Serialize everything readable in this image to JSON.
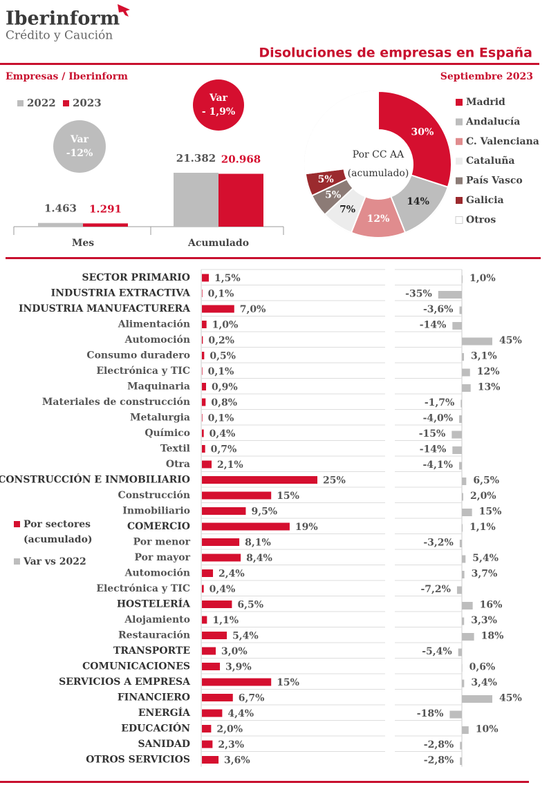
{
  "header": {
    "brand": "Iberinform",
    "tagline": "Crédito y Caución",
    "title": "Disoluciones de empresas en España",
    "source": "Empresas / Iberinform",
    "date": "Septiembre 2023"
  },
  "chart_data": [
    {
      "type": "bar",
      "categories": [
        "Mes",
        "Acumulado"
      ],
      "series": [
        {
          "name": "2022",
          "color": "#bdbdbd",
          "values": [
            1463,
            21382
          ],
          "value_labels": [
            "1.463",
            "21.382"
          ]
        },
        {
          "name": "2023",
          "color": "#d50f2f",
          "values": [
            1291,
            20968
          ],
          "value_labels": [
            "1.291",
            "20.968"
          ]
        }
      ],
      "annotations": [
        {
          "title": "Var",
          "text": "-12%",
          "color": "#bdbdbd"
        },
        {
          "title": "Var",
          "text": "- 1,9%",
          "color": "#d50f2f"
        }
      ]
    },
    {
      "type": "pie",
      "center_label": "Por CC AA (acumulado)",
      "categories": [
        "Madrid",
        "Andalucía",
        "C. Valenciana",
        "Cataluña",
        "País Vasco",
        "Galicia",
        "Otros"
      ],
      "values": [
        30,
        14,
        12,
        7,
        5,
        5,
        27
      ],
      "value_labels": [
        "30%",
        "14%",
        "12%",
        "7%",
        "5%",
        "5%",
        null
      ],
      "colors": [
        "#d50f2f",
        "#bdbdbd",
        "#e08c8e",
        "#ececec",
        "#8c7b76",
        "#9b2a2e",
        "#ffffff"
      ]
    },
    {
      "type": "hbar",
      "categories": [
        "SECTOR PRIMARIO",
        "INDUSTRIA EXTRACTIVA",
        "INDUSTRIA MANUFACTURERA",
        "Alimentación",
        "Automoción",
        "Consumo duradero",
        "Electrónica y TIC",
        "Maquinaria",
        "Materiales de construcción",
        "Metalurgia",
        "Químico",
        "Textil",
        "Otra",
        "CONSTRUCCIÓN E INMOBILIARIO",
        "Construcción",
        "Inmobiliario",
        "COMERCIO",
        "Por menor",
        "Por mayor",
        "Automoción",
        "Electrónica y TIC",
        "HOSTELERÍA",
        "Alojamiento",
        "Restauración",
        "TRANSPORTE",
        "COMUNICACIONES",
        "SERVICIOS A EMPRESA",
        "FINANCIERO",
        "ENERGÍA",
        "EDUCACIÓN",
        "SANIDAD",
        "OTROS SERVICIOS"
      ],
      "series": [
        {
          "name": "Por sectores (acumulado)",
          "color": "#d50f2f",
          "values": [
            1.5,
            0.1,
            7.0,
            1.0,
            0.2,
            0.5,
            0.1,
            0.9,
            0.8,
            0.1,
            0.4,
            0.7,
            2.1,
            25,
            15,
            9.5,
            19,
            8.1,
            8.4,
            2.4,
            0.4,
            6.5,
            1.1,
            5.4,
            3.0,
            3.9,
            15,
            6.7,
            4.4,
            2.0,
            2.3,
            3.6
          ],
          "value_labels": [
            "1,5%",
            "0,1%",
            "7,0%",
            "1,0%",
            "0,2%",
            "0,5%",
            "0,1%",
            "0,9%",
            "0,8%",
            "0,1%",
            "0,4%",
            "0,7%",
            "2,1%",
            "25%",
            "15%",
            "9,5%",
            "19%",
            "8,1%",
            "8,4%",
            "2,4%",
            "0,4%",
            "6,5%",
            "1,1%",
            "5,4%",
            "3,0%",
            "3,9%",
            "15%",
            "6,7%",
            "4,4%",
            "2,0%",
            "2,3%",
            "3,6%"
          ]
        },
        {
          "name": "Var vs 2022",
          "color": "#bdbdbd",
          "values": [
            1.0,
            -35,
            -3.6,
            -14,
            45,
            3.1,
            12,
            13,
            -1.7,
            -4.0,
            -15,
            -14,
            -4.1,
            6.5,
            2.0,
            15,
            1.1,
            -3.2,
            5.4,
            3.7,
            -7.2,
            16,
            3.3,
            18,
            -5.4,
            0.6,
            3.4,
            45,
            -18,
            10,
            -2.8,
            -2.8
          ],
          "value_labels": [
            "1,0%",
            "-35%",
            "-3,6%",
            "-14%",
            "45%",
            "3,1%",
            "12%",
            "13%",
            "-1,7%",
            "-4,0%",
            "-15%",
            "-14%",
            "-4,1%",
            "6,5%",
            "2,0%",
            "15%",
            "1,1%",
            "-3,2%",
            "5,4%",
            "3,7%",
            "-7,2%",
            "16%",
            "3,3%",
            "18%",
            "-5,4%",
            "0,6%",
            "3,4%",
            "45%",
            "-18%",
            "10%",
            "-2,8%",
            "-2,8%"
          ]
        }
      ]
    }
  ]
}
